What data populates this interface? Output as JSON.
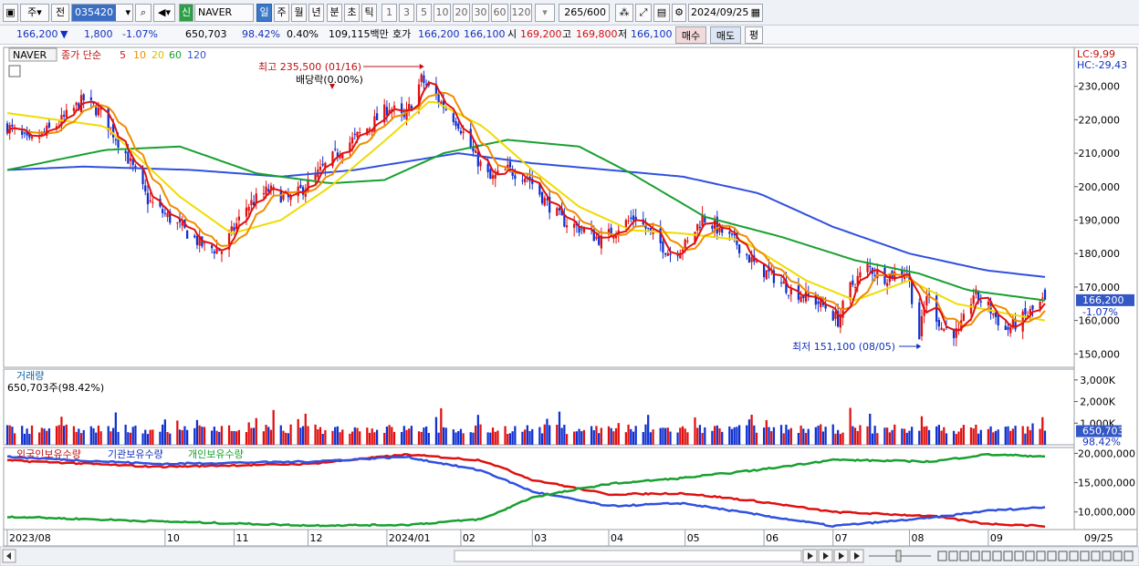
{
  "toolbar": {
    "market": "주",
    "period_prefix": "전",
    "code": "035420",
    "symbol_badge": "신",
    "name": "NAVER",
    "periods": [
      "일",
      "주",
      "월",
      "년",
      "분",
      "초",
      "틱"
    ],
    "active_period": "일",
    "intervals": [
      "1",
      "3",
      "5",
      "10",
      "20",
      "30",
      "60",
      "120"
    ],
    "count": "265",
    "count_total": "/600",
    "date": "2024/09/25"
  },
  "quote": {
    "price": "166,200",
    "arrow": "▼",
    "change": "1,800",
    "change_pct": "-1.07%",
    "volume": "650,703",
    "volume_pct": "98.42%",
    "rate": "0.40%",
    "amount": "109,115백만",
    "ask_label": "호가",
    "ask1": "166,200",
    "ask2": "166,100",
    "open_label": "시",
    "open": "169,200",
    "high_label": "고",
    "high": "169,800",
    "low_label": "저",
    "low": "166,100",
    "buy": "매수",
    "sell": "매도",
    "eval": "평"
  },
  "chart_data": {
    "type": "candlestick",
    "symbol": "NAVER",
    "legend": {
      "name": "NAVER",
      "close_label": "종가 단순",
      "ma_periods": [
        {
          "period": "5",
          "color": "#e01010"
        },
        {
          "period": "10",
          "color": "#f08c00"
        },
        {
          "period": "20",
          "color": "#f0dc00"
        },
        {
          "period": "60",
          "color": "#18a030"
        },
        {
          "period": "120",
          "color": "#3050e0"
        }
      ]
    },
    "lc": "LC:9,99",
    "hc": "HC:-29,43",
    "price_axis": {
      "ylim": [
        146000,
        240000
      ],
      "ticks": [
        150000,
        160000,
        170000,
        180000,
        190000,
        200000,
        210000,
        220000,
        230000
      ],
      "tick_labels": [
        "150,000",
        "160,000",
        "170,000",
        "180,000",
        "190,000",
        "200,000",
        "210,000",
        "220,000",
        "230,000"
      ]
    },
    "current_price": {
      "value": 166200,
      "label": "166,200",
      "pct": "-1.07%"
    },
    "annotations": {
      "high": {
        "text": "최고 235,500 (01/16)",
        "value": 235500,
        "date": "2024-01-16"
      },
      "dividend": {
        "text": "배당락(0.00%)"
      },
      "low": {
        "text": "최저 151,100 (08/05)",
        "value": 151100,
        "date": "2024-08-05"
      }
    },
    "x_axis": {
      "labels": [
        "2023/08",
        "10",
        "11",
        "12",
        "2024/01",
        "02",
        "03",
        "04",
        "05",
        "06",
        "07",
        "08",
        "09",
        "09/25"
      ]
    },
    "close_anchors": [
      {
        "d": "2023-08-01",
        "v": 218000
      },
      {
        "d": "2023-08-10",
        "v": 213000
      },
      {
        "d": "2023-08-22",
        "v": 219000
      },
      {
        "d": "2023-09-01",
        "v": 226000
      },
      {
        "d": "2023-09-08",
        "v": 222000
      },
      {
        "d": "2023-09-18",
        "v": 210000
      },
      {
        "d": "2023-09-27",
        "v": 196000
      },
      {
        "d": "2023-10-10",
        "v": 188000
      },
      {
        "d": "2023-10-20",
        "v": 182000
      },
      {
        "d": "2023-10-27",
        "v": 181000
      },
      {
        "d": "2023-11-06",
        "v": 194000
      },
      {
        "d": "2023-11-15",
        "v": 199000
      },
      {
        "d": "2023-11-24",
        "v": 196000
      },
      {
        "d": "2023-12-04",
        "v": 203000
      },
      {
        "d": "2023-12-14",
        "v": 211000
      },
      {
        "d": "2023-12-26",
        "v": 218000
      },
      {
        "d": "2024-01-03",
        "v": 224000
      },
      {
        "d": "2024-01-09",
        "v": 220000
      },
      {
        "d": "2024-01-16",
        "v": 232000
      },
      {
        "d": "2024-01-23",
        "v": 226000
      },
      {
        "d": "2024-01-31",
        "v": 219000
      },
      {
        "d": "2024-02-06",
        "v": 210000
      },
      {
        "d": "2024-02-13",
        "v": 202000
      },
      {
        "d": "2024-02-20",
        "v": 205000
      },
      {
        "d": "2024-02-28",
        "v": 203000
      },
      {
        "d": "2024-03-06",
        "v": 196000
      },
      {
        "d": "2024-03-13",
        "v": 190000
      },
      {
        "d": "2024-03-22",
        "v": 187000
      },
      {
        "d": "2024-03-29",
        "v": 184000
      },
      {
        "d": "2024-04-05",
        "v": 188000
      },
      {
        "d": "2024-04-12",
        "v": 191000
      },
      {
        "d": "2024-04-19",
        "v": 185000
      },
      {
        "d": "2024-04-26",
        "v": 180000
      },
      {
        "d": "2024-05-03",
        "v": 183000
      },
      {
        "d": "2024-05-09",
        "v": 191000
      },
      {
        "d": "2024-05-16",
        "v": 187000
      },
      {
        "d": "2024-05-23",
        "v": 183000
      },
      {
        "d": "2024-05-31",
        "v": 176000
      },
      {
        "d": "2024-06-07",
        "v": 173000
      },
      {
        "d": "2024-06-14",
        "v": 169000
      },
      {
        "d": "2024-06-21",
        "v": 167000
      },
      {
        "d": "2024-06-28",
        "v": 164000
      },
      {
        "d": "2024-07-03",
        "v": 160000
      },
      {
        "d": "2024-07-08",
        "v": 170000
      },
      {
        "d": "2024-07-15",
        "v": 176000
      },
      {
        "d": "2024-07-22",
        "v": 173000
      },
      {
        "d": "2024-07-31",
        "v": 175000
      },
      {
        "d": "2024-08-05",
        "v": 155000
      },
      {
        "d": "2024-08-08",
        "v": 168000
      },
      {
        "d": "2024-08-14",
        "v": 158000
      },
      {
        "d": "2024-08-21",
        "v": 156000
      },
      {
        "d": "2024-08-27",
        "v": 168000
      },
      {
        "d": "2024-09-02",
        "v": 164000
      },
      {
        "d": "2024-09-09",
        "v": 157000
      },
      {
        "d": "2024-09-13",
        "v": 159000
      },
      {
        "d": "2024-09-20",
        "v": 163000
      },
      {
        "d": "2024-09-25",
        "v": 166200
      }
    ],
    "moving_averages": {
      "ma20": [
        {
          "d": "2023-08-01",
          "v": 222000
        },
        {
          "d": "2023-09-10",
          "v": 218000
        },
        {
          "d": "2023-10-10",
          "v": 197000
        },
        {
          "d": "2023-10-31",
          "v": 186000
        },
        {
          "d": "2023-11-20",
          "v": 190000
        },
        {
          "d": "2023-12-10",
          "v": 200000
        },
        {
          "d": "2023-12-31",
          "v": 213000
        },
        {
          "d": "2024-01-20",
          "v": 226000
        },
        {
          "d": "2024-02-10",
          "v": 218000
        },
        {
          "d": "2024-03-01",
          "v": 205000
        },
        {
          "d": "2024-03-20",
          "v": 194000
        },
        {
          "d": "2024-04-10",
          "v": 187000
        },
        {
          "d": "2024-05-01",
          "v": 186000
        },
        {
          "d": "2024-05-25",
          "v": 184000
        },
        {
          "d": "2024-06-20",
          "v": 172000
        },
        {
          "d": "2024-07-10",
          "v": 166000
        },
        {
          "d": "2024-08-01",
          "v": 172000
        },
        {
          "d": "2024-08-20",
          "v": 165000
        },
        {
          "d": "2024-09-10",
          "v": 162000
        },
        {
          "d": "2024-09-25",
          "v": 160000
        }
      ],
      "ma60": [
        {
          "d": "2023-08-01",
          "v": 205000
        },
        {
          "d": "2023-09-10",
          "v": 211000
        },
        {
          "d": "2023-10-10",
          "v": 212000
        },
        {
          "d": "2023-11-10",
          "v": 204000
        },
        {
          "d": "2023-12-10",
          "v": 201000
        },
        {
          "d": "2024-01-01",
          "v": 202000
        },
        {
          "d": "2024-01-25",
          "v": 210000
        },
        {
          "d": "2024-02-20",
          "v": 214000
        },
        {
          "d": "2024-03-20",
          "v": 212000
        },
        {
          "d": "2024-04-10",
          "v": 204000
        },
        {
          "d": "2024-05-10",
          "v": 191000
        },
        {
          "d": "2024-06-10",
          "v": 185000
        },
        {
          "d": "2024-07-10",
          "v": 178000
        },
        {
          "d": "2024-08-05",
          "v": 174000
        },
        {
          "d": "2024-08-25",
          "v": 169000
        },
        {
          "d": "2024-09-25",
          "v": 166000
        }
      ],
      "ma120": [
        {
          "d": "2023-08-01",
          "v": 205000
        },
        {
          "d": "2023-09-01",
          "v": 206000
        },
        {
          "d": "2023-10-15",
          "v": 205000
        },
        {
          "d": "2023-11-20",
          "v": 203000
        },
        {
          "d": "2023-12-20",
          "v": 205000
        },
        {
          "d": "2024-01-31",
          "v": 210000
        },
        {
          "d": "2024-03-01",
          "v": 207000
        },
        {
          "d": "2024-04-01",
          "v": 205000
        },
        {
          "d": "2024-05-01",
          "v": 203000
        },
        {
          "d": "2024-06-01",
          "v": 198000
        },
        {
          "d": "2024-07-01",
          "v": 188000
        },
        {
          "d": "2024-08-01",
          "v": 180000
        },
        {
          "d": "2024-09-01",
          "v": 175000
        },
        {
          "d": "2024-09-25",
          "v": 173000
        }
      ]
    },
    "volume": {
      "title": "거래량",
      "current_label": "650,703주(98.42%)",
      "current_value": "650,703",
      "current_pct": "98.42%",
      "ylim": [
        0,
        3500000
      ],
      "ticks": [
        1000000,
        2000000,
        3000000
      ],
      "tick_labels": [
        "1,000K",
        "2,000K",
        "3,000K"
      ]
    },
    "holdings": {
      "legend": [
        "외국인보유수량",
        "기관보유수량",
        "개인보유수량"
      ],
      "colors": [
        "#e01010",
        "#3050e0",
        "#18a030"
      ],
      "ylim": [
        7000000,
        21000000
      ],
      "ticks": [
        10000000,
        15000000,
        20000000
      ],
      "tick_labels": [
        "10,000,000",
        "15,000,000",
        "20,000,000"
      ],
      "foreign": [
        {
          "d": "2023-08-01",
          "v": 18800000
        },
        {
          "d": "2023-10-01",
          "v": 17700000
        },
        {
          "d": "2023-12-01",
          "v": 18200000
        },
        {
          "d": "2024-01-10",
          "v": 19800000
        },
        {
          "d": "2024-02-10",
          "v": 18800000
        },
        {
          "d": "2024-03-01",
          "v": 15500000
        },
        {
          "d": "2024-04-01",
          "v": 13000000
        },
        {
          "d": "2024-05-01",
          "v": 13200000
        },
        {
          "d": "2024-06-01",
          "v": 11800000
        },
        {
          "d": "2024-07-01",
          "v": 10000000
        },
        {
          "d": "2024-08-10",
          "v": 9300000
        },
        {
          "d": "2024-09-01",
          "v": 8000000
        },
        {
          "d": "2024-09-25",
          "v": 7600000
        }
      ],
      "institution": [
        {
          "d": "2023-08-01",
          "v": 19400000
        },
        {
          "d": "2023-10-01",
          "v": 18200000
        },
        {
          "d": "2023-12-01",
          "v": 18600000
        },
        {
          "d": "2024-01-10",
          "v": 19400000
        },
        {
          "d": "2024-02-10",
          "v": 17000000
        },
        {
          "d": "2024-03-01",
          "v": 13500000
        },
        {
          "d": "2024-04-01",
          "v": 11000000
        },
        {
          "d": "2024-05-01",
          "v": 11500000
        },
        {
          "d": "2024-06-01",
          "v": 9500000
        },
        {
          "d": "2024-07-01",
          "v": 7600000
        },
        {
          "d": "2024-08-10",
          "v": 9000000
        },
        {
          "d": "2024-09-01",
          "v": 10200000
        },
        {
          "d": "2024-09-25",
          "v": 10800000
        }
      ],
      "individual": [
        {
          "d": "2023-08-01",
          "v": 9200000
        },
        {
          "d": "2023-10-01",
          "v": 8400000
        },
        {
          "d": "2023-12-01",
          "v": 7700000
        },
        {
          "d": "2024-01-10",
          "v": 7800000
        },
        {
          "d": "2024-02-10",
          "v": 8800000
        },
        {
          "d": "2024-03-01",
          "v": 12500000
        },
        {
          "d": "2024-04-01",
          "v": 14800000
        },
        {
          "d": "2024-05-01",
          "v": 15800000
        },
        {
          "d": "2024-06-01",
          "v": 17200000
        },
        {
          "d": "2024-07-01",
          "v": 18900000
        },
        {
          "d": "2024-08-10",
          "v": 18600000
        },
        {
          "d": "2024-09-01",
          "v": 19800000
        },
        {
          "d": "2024-09-25",
          "v": 19500000
        }
      ]
    }
  }
}
